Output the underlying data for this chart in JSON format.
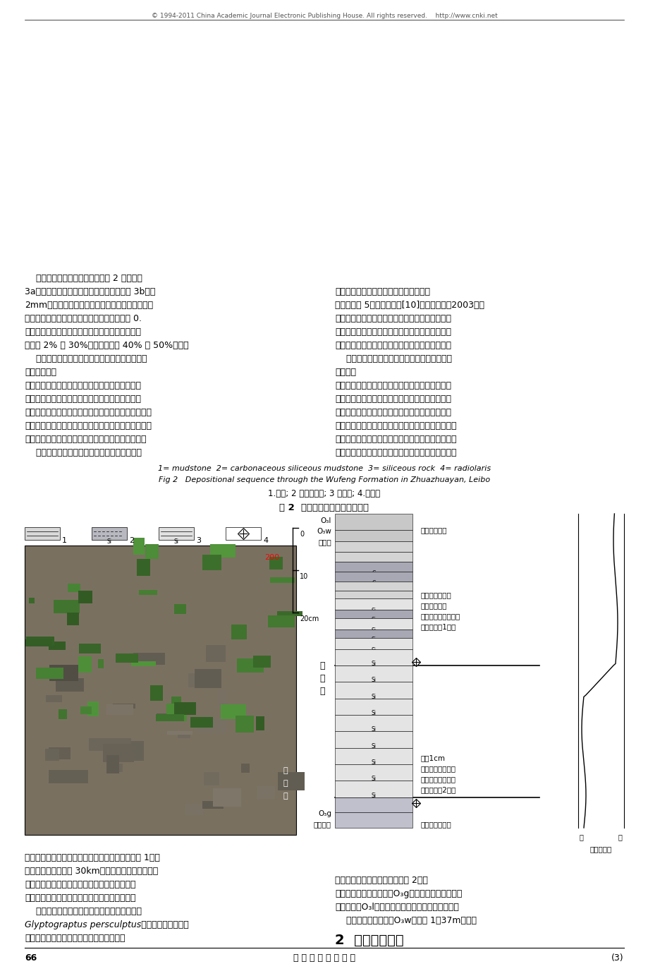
{
  "page_number": "66",
  "journal_title": "沉 积 与 特 提 斯 地 质",
  "page_num_right": "(3)",
  "background_color": "#ffffff",
  "figsize": [
    9.2,
    13.83
  ],
  "dpi": 100,
  "para1_col1": [
    "物群）为特征，上覆志留系龙马溪组底部含",
    "Glyptograptus persculptus笔石带的炭质页岩。",
    "    抓抓岩剑面构造位置属上扬子陆块西南地区，",
    "位于四川省雷波县境内金沙江北屸抓抓岩村附近",
    "（因修建溪洛渡电站，该剑面可能在数年内被淨",
    "没），距雷波县城约 30km。剑面与金沙江南屸云南",
    "永善肖滩剑面隔江相望，露头极佳，交通便利（图 1）。"
  ],
  "section2_title": "2  沉积序列特征",
  "para2_col2": [
    "    抓抓岩剑面五峰组（O₃w）厚约 1．37m。底部",
    "与临湘组（O₃l）深灰色泥灿岩界面平整，未见侵蚀",
    "特征，顶部与观音桥组（O₃g）灰色、浅灰色粉沙质",
    "泥岩接触，岩性、颜色突变（图 2）。"
  ],
  "fig2_caption_zh": "图 2  雷波抓抓岩五峰组沉积序列",
  "fig2_caption_zh2": "1.泥岩; 2 炭确质泥岩; 3 确质岩; 4.放射虫",
  "fig2_caption_en": "Fig 2   Depositional sequence through the Wufeng Formation in Zhuazhuayan, Leibo",
  "fig2_caption_en2": "1= mudstone  2= carbonaceous siliceous mudstone  3= siliceous rock  4= radiolaris",
  "body_col1_lines": [
    "    剑面结构上，五峰组下部为暗灰色、灰黑色泥",
    "岩，含少量石英质粉沙成分，间夹薄层或条带状炭确",
    "质泥岩、确质岩，笔石稀少，未见放射虫；上部为灰黑",
    "色确质岩，岩石结构致密，节理发育，产丰富放射虫，",
    "但无笔石。沉积构造隐约可见水平层理。沉积序列",
    "由下而上，该组呼现出由泥质沉积向确质沉积间互",
    "过渡的趋势。",
    "    显微镜下，放射虫呼星点状散布于确质岩中，含",
    "量一般 2% ～ 30%，局部可达约 40% ～ 50%。确质",
    "岩基质主要为隐晶质玉髓和石英，少量确质碎屑及",
    "泥质。放射虫呼圆形或游圆形，直径一般小于 0.",
    "2mm，多已被溶蚀呼铸模孔洞，总体轮廓模糊（图",
    "3a），个别保存较完整的可见其放射刺（图 3b）。",
    "    从五峰组的岩性岩相变化来看图 2 五峰期早"
  ],
  "body_col2_lines": [
    "期（对应该组下部沉积），该地区以浅海相泥质沉积",
    "为主，间夹确质岩，表明了海平面的波动不定。五峰",
    "期晚期（对应该组上部沉积），泥质沉积明显减少，",
    "取而代之的是稳定的含放射虫确质岩沉积。这是富",
    "确质海水随着海平面的显著上升进入扬子克拉通的",
    "直接体现，进而表明扬子陆表海与外海形成了良好",
    "的沟通。",
    "    由此可见，晚奥陶世五峰期经历了两期主要的",
    "海侵海退旋回（四级）。第二期旋回与含放射虫确",
    "质岩的形成密接相关。实际上，更为精确的稀土及",
    "稳定同位素研究表明五峰期海平面从上升到下降，",
    "其中经历了 5次海平面波动[10]（何卫红等，2003），",
    "而沉积物基本上表现为水下的沉积间断。"
  ],
  "footer_text": "© 1994-2011 China Academic Journal Electronic Publishing House. All rights reserved.    http://www.cnki.net",
  "strat_labels": {
    "guanyinqiao": "观音桥组",
    "guanyinqiao_sub": "O₃g",
    "wufeng_chars": [
      "五",
      "峰",
      "组"
    ],
    "linxiang": "临湘组",
    "linxiang_sub": "O₃w",
    "linxiang_bot": "O₃l",
    "grey_sandy": "灰色粉沙质泥岩",
    "deep_grey": "深灰色泥灿岩",
    "upper_ann1": "上部（旋回2）：",
    "upper_ann2": "灰黑色确质岩夹一",
    "upper_ann3": "层褐黄色粘土层，",
    "upper_ann4": "厚约1cm",
    "lower_ann1": "下部（旋回1）：",
    "lower_ann2": "暗灰一灰黑色泥岩、",
    "lower_ann3": "炭确质泥岩；",
    "lower_ann4": "间夹薄层确质岩",
    "sealevel_title": "海平面波动",
    "low": "低",
    "high": "高"
  }
}
